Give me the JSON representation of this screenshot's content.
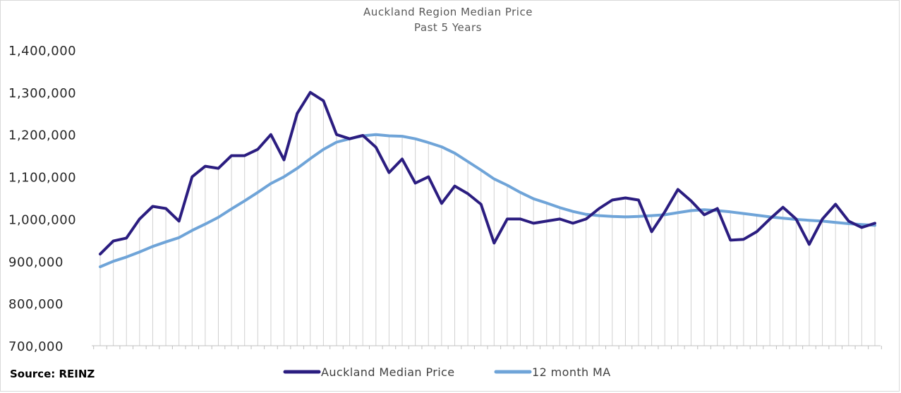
{
  "chart_data": {
    "type": "line",
    "title": "Auckland Region Median Price",
    "subtitle": "Past 5 Years",
    "source": "Source: REINZ",
    "ylim": [
      700000,
      1400000
    ],
    "y_ticks": [
      "700,000",
      "800,000",
      "900,000",
      "1,000,000",
      "1,100,000",
      "1,200,000",
      "1,300,000",
      "1,400,000"
    ],
    "grid": "vertical drop lines per data point",
    "legend_placement": "bottom",
    "series": [
      {
        "name": "Auckland Median Price",
        "color": "#2b1d80",
        "values": [
          917000,
          948000,
          955000,
          1000000,
          1030000,
          1025000,
          995000,
          1100000,
          1125000,
          1120000,
          1150000,
          1150000,
          1165000,
          1200000,
          1140000,
          1250000,
          1300000,
          1280000,
          1200000,
          1190000,
          1198000,
          1170000,
          1110000,
          1142000,
          1085000,
          1100000,
          1037000,
          1078000,
          1060000,
          1035000,
          943000,
          1000000,
          1000000,
          990000,
          995000,
          1000000,
          990000,
          1000000,
          1025000,
          1045000,
          1050000,
          1045000,
          970000,
          1017000,
          1070000,
          1043000,
          1010000,
          1025000,
          950000,
          952000,
          970000,
          1000000,
          1028000,
          1000000,
          940000,
          1000000,
          1035000,
          995000,
          980000,
          990000
        ]
      },
      {
        "name": "12 month MA",
        "color": "#6fa4d8",
        "values": [
          887000,
          900000,
          910000,
          922000,
          935000,
          946000,
          956000,
          973000,
          988000,
          1004000,
          1024000,
          1043000,
          1063000,
          1084000,
          1100000,
          1120000,
          1143000,
          1165000,
          1182000,
          1190000,
          1197000,
          1200000,
          1197000,
          1196000,
          1190000,
          1181000,
          1171000,
          1156000,
          1136000,
          1116000,
          1095000,
          1080000,
          1063000,
          1048000,
          1038000,
          1027000,
          1018000,
          1011000,
          1008000,
          1006000,
          1005000,
          1006000,
          1008000,
          1010000,
          1015000,
          1020000,
          1022000,
          1020000,
          1017000,
          1013000,
          1009000,
          1005000,
          1002000,
          999000,
          997000,
          995000,
          992000,
          989000,
          987000,
          985000
        ]
      }
    ]
  }
}
